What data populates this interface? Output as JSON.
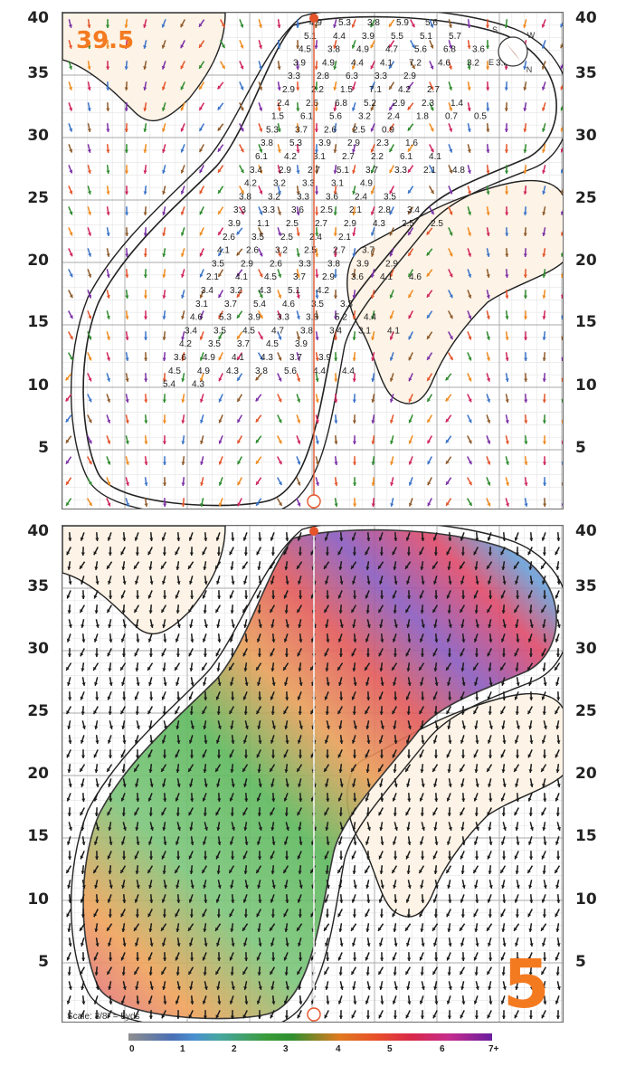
{
  "hole": {
    "number": "5",
    "elevation": "39.5",
    "scale": "Scale: 3/8\" = 5yds"
  },
  "axis_ticks": [
    "40",
    "35",
    "30",
    "25",
    "20",
    "15",
    "10",
    "5"
  ],
  "compass": {
    "labels": [
      "S",
      "W",
      "N",
      "E"
    ]
  },
  "legend": {
    "labels": [
      "0",
      "1",
      "2",
      "3",
      "4",
      "5",
      "6",
      "7+"
    ]
  },
  "colors": {
    "accent": "#f47a20",
    "sand": "#fdf3e6",
    "pin": "#e4532a"
  },
  "slope_values_top": [
    "4.9",
    "5.3",
    "3.8",
    "5.9",
    "5.6",
    "5.1",
    "4.4",
    "3.9",
    "5.5",
    "5.1",
    "5.7",
    "4.5",
    "3.8",
    "4.9",
    "4.7",
    "5.6",
    "6.8",
    "3.6",
    "3.9",
    "4.9",
    "4.4",
    "4.1",
    "7.2",
    "4.6",
    "3.2",
    "3.8",
    "3.3",
    "2.8",
    "6.3",
    "3.3",
    "2.9",
    "2.9",
    "2.2",
    "1.5",
    "7.1",
    "4.2",
    "2.7",
    "2.4",
    "2.6",
    "6.8",
    "5.2",
    "2.9",
    "2.3",
    "1.4",
    "1.5",
    "6.1",
    "5.6",
    "3.2",
    "2.4",
    "1.8",
    "0.7",
    "0.5",
    "5.3",
    "3.7",
    "2.6",
    "2.5",
    "0.9",
    "3.8",
    "5.3",
    "3.9",
    "2.9",
    "2.3",
    "1.6",
    "6.1",
    "4.2",
    "3.1",
    "2.7",
    "2.2",
    "6.1",
    "4.1",
    "3.4",
    "2.9",
    "2.7",
    "5.1",
    "3.7",
    "3.3",
    "2.1",
    "4.8",
    "4.2",
    "3.2",
    "3.3",
    "3.1",
    "4.9",
    "3.8",
    "3.2",
    "3.3",
    "3.6",
    "2.4",
    "3.5",
    "3.3",
    "3.3",
    "3.6",
    "2.5",
    "2.1",
    "2.8",
    "3.4",
    "3.9",
    "1.1",
    "2.5",
    "2.7",
    "2.9",
    "4.3",
    "2.5",
    "2.5",
    "2.6",
    "3.5",
    "2.5",
    "2.4",
    "2.1",
    "4.1",
    "2.6",
    "3.2",
    "2.5",
    "2.7",
    "3.7",
    "3.5",
    "2.9",
    "2.6",
    "3.3",
    "3.8",
    "3.9",
    "2.9",
    "2.1",
    "4.1",
    "4.5",
    "3.7",
    "2.9",
    "3.6",
    "4.1",
    "4.6",
    "3.4",
    "3.2",
    "4.3",
    "5.1",
    "4.2",
    "3.1",
    "3.7",
    "5.4",
    "4.6",
    "3.5",
    "3.3",
    "4.6",
    "5.3",
    "3.9",
    "3.3",
    "3.8",
    "5.2",
    "4.4",
    "3.4",
    "3.5",
    "4.5",
    "4.7",
    "3.8",
    "3.4",
    "3.1",
    "4.1",
    "4.2",
    "3.5",
    "3.7",
    "4.5",
    "3.9",
    "3.6",
    "4.9",
    "4.1",
    "4.3",
    "3.7",
    "3.9",
    "4.5",
    "4.9",
    "4.3",
    "3.8",
    "5.6",
    "4.4",
    "4.4",
    "5.4",
    "4.3"
  ]
}
